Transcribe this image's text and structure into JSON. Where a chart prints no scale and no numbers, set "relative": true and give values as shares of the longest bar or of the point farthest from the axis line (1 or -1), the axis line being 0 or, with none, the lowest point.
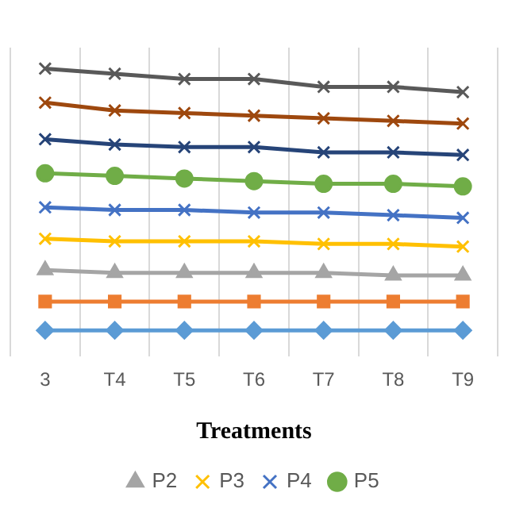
{
  "chart_data": {
    "type": "line",
    "relative": true,
    "xlabel": "Treatments",
    "grid": "x",
    "legend": "bottom",
    "categories": [
      "3",
      "T4",
      "T5",
      "T6",
      "T7",
      "T8",
      "T9"
    ],
    "series": [
      {
        "color": "#5b9bd5",
        "marker": "diamond",
        "values": [
          0,
          0,
          0,
          0,
          0,
          0,
          0
        ]
      },
      {
        "color": "#ed7d31",
        "marker": "square",
        "values": [
          0.11,
          0.11,
          0.11,
          0.11,
          0.11,
          0.11,
          0.11
        ]
      },
      {
        "name": "P2",
        "color": "#a5a5a5",
        "marker": "triangle",
        "values": [
          0.23,
          0.22,
          0.22,
          0.22,
          0.22,
          0.21,
          0.21
        ]
      },
      {
        "name": "P3",
        "color": "#ffc000",
        "marker": "cross",
        "values": [
          0.35,
          0.34,
          0.34,
          0.34,
          0.33,
          0.33,
          0.32
        ]
      },
      {
        "name": "P4",
        "color": "#4472c4",
        "marker": "cross",
        "values": [
          0.47,
          0.46,
          0.46,
          0.45,
          0.45,
          0.44,
          0.43
        ]
      },
      {
        "name": "P5",
        "color": "#70ad47",
        "marker": "circle",
        "values": [
          0.6,
          0.59,
          0.58,
          0.57,
          0.56,
          0.56,
          0.55
        ]
      },
      {
        "color": "#264478",
        "marker": "cross",
        "values": [
          0.73,
          0.71,
          0.7,
          0.7,
          0.68,
          0.68,
          0.67
        ]
      },
      {
        "color": "#9e480e",
        "marker": "cross",
        "values": [
          0.87,
          0.84,
          0.83,
          0.82,
          0.81,
          0.8,
          0.79
        ]
      },
      {
        "color": "#595959",
        "marker": "cross",
        "values": [
          1.0,
          0.98,
          0.96,
          0.96,
          0.93,
          0.93,
          0.91
        ]
      }
    ]
  }
}
